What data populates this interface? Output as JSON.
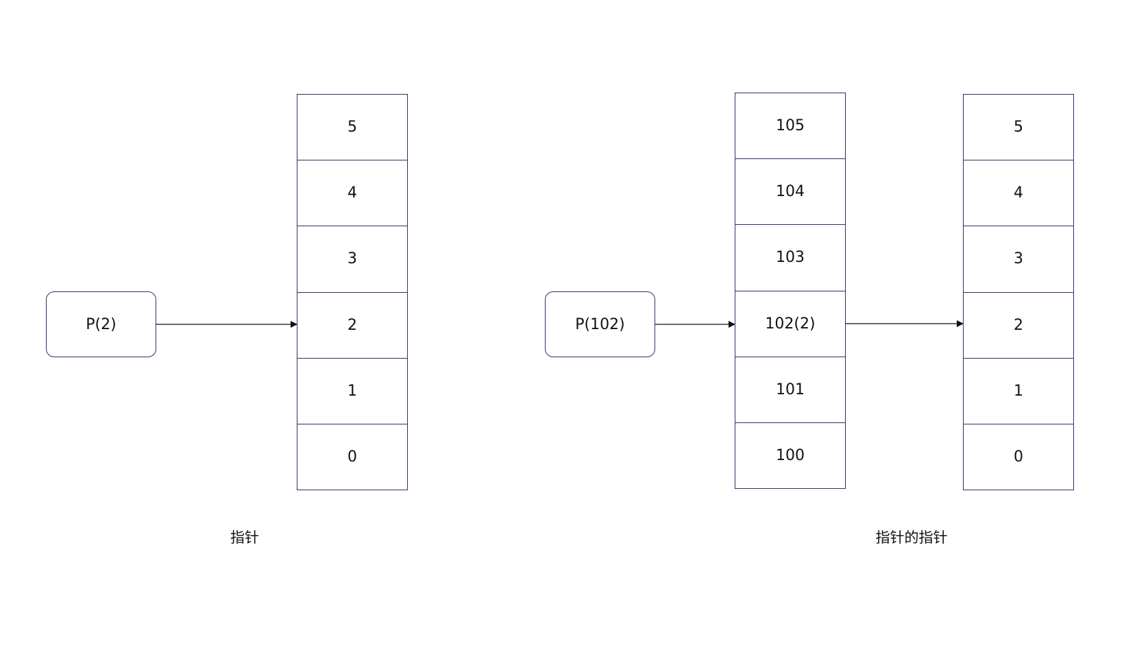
{
  "left_diagram": {
    "pointer_label": "P(2)",
    "cells": [
      "5",
      "4",
      "3",
      "2",
      "1",
      "0"
    ],
    "caption": "指针"
  },
  "right_diagram": {
    "pointer_label": "P(102)",
    "middle_cells": [
      "105",
      "104",
      "103",
      "102(2)",
      "101",
      "100"
    ],
    "target_cells": [
      "5",
      "4",
      "3",
      "2",
      "1",
      "0"
    ],
    "caption": "指针的指针"
  },
  "colors": {
    "border": "#2b3160",
    "arrow": "#111111",
    "background": "#ffffff"
  }
}
